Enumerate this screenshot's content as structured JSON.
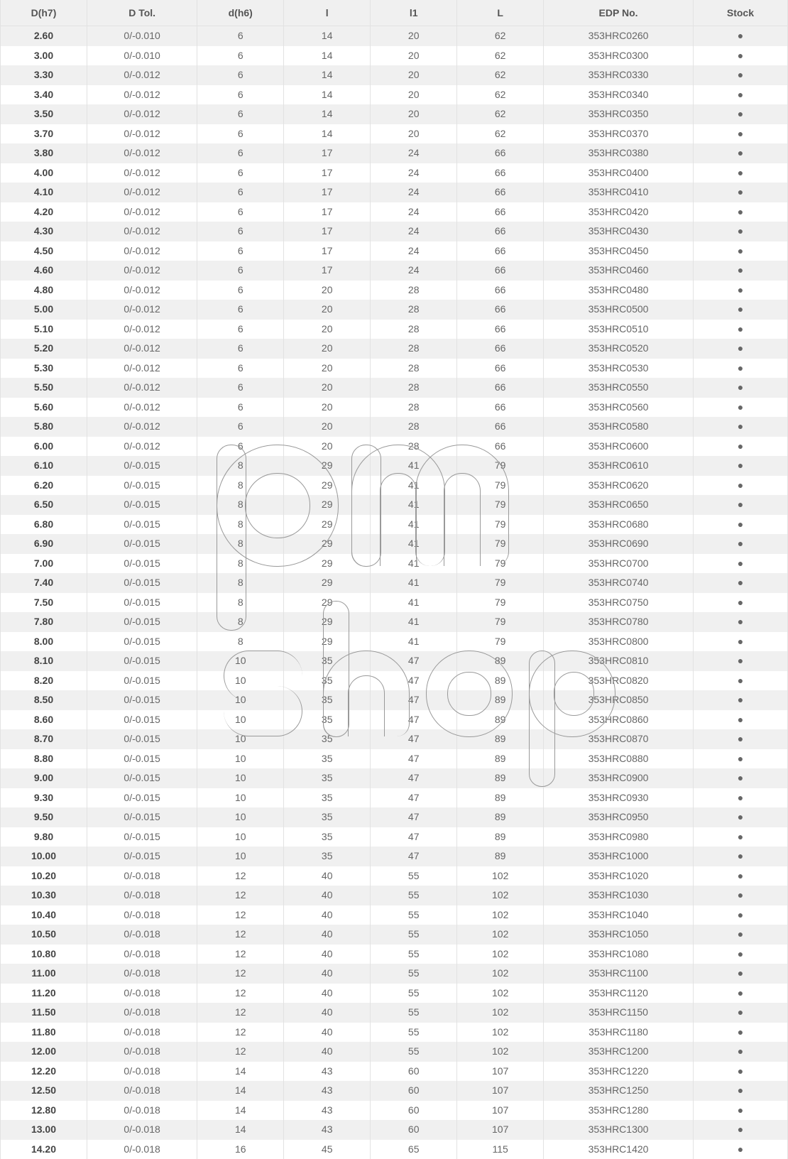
{
  "table": {
    "header_bg": "#f0f0f0",
    "row_alt_bg": "#f0f0f0",
    "row_bg": "#ffffff",
    "border_color": "#e2e2e2",
    "text_color": "#666666",
    "bold_text_color": "#444444",
    "font_size": 14,
    "stock_dot_color": "#000000",
    "col_widths_pct": [
      11,
      14,
      11,
      11,
      11,
      11,
      19,
      12
    ],
    "columns": [
      "D(h7)",
      "D Tol.",
      "d(h6)",
      "l",
      "l1",
      "L",
      "EDP No.",
      "Stock"
    ],
    "rows": [
      [
        "2.60",
        "0/-0.010",
        "6",
        "14",
        "20",
        "62",
        "353HRC0260",
        "●"
      ],
      [
        "3.00",
        "0/-0.010",
        "6",
        "14",
        "20",
        "62",
        "353HRC0300",
        "●"
      ],
      [
        "3.30",
        "0/-0.012",
        "6",
        "14",
        "20",
        "62",
        "353HRC0330",
        "●"
      ],
      [
        "3.40",
        "0/-0.012",
        "6",
        "14",
        "20",
        "62",
        "353HRC0340",
        "●"
      ],
      [
        "3.50",
        "0/-0.012",
        "6",
        "14",
        "20",
        "62",
        "353HRC0350",
        "●"
      ],
      [
        "3.70",
        "0/-0.012",
        "6",
        "14",
        "20",
        "62",
        "353HRC0370",
        "●"
      ],
      [
        "3.80",
        "0/-0.012",
        "6",
        "17",
        "24",
        "66",
        "353HRC0380",
        "●"
      ],
      [
        "4.00",
        "0/-0.012",
        "6",
        "17",
        "24",
        "66",
        "353HRC0400",
        "●"
      ],
      [
        "4.10",
        "0/-0.012",
        "6",
        "17",
        "24",
        "66",
        "353HRC0410",
        "●"
      ],
      [
        "4.20",
        "0/-0.012",
        "6",
        "17",
        "24",
        "66",
        "353HRC0420",
        "●"
      ],
      [
        "4.30",
        "0/-0.012",
        "6",
        "17",
        "24",
        "66",
        "353HRC0430",
        "●"
      ],
      [
        "4.50",
        "0/-0.012",
        "6",
        "17",
        "24",
        "66",
        "353HRC0450",
        "●"
      ],
      [
        "4.60",
        "0/-0.012",
        "6",
        "17",
        "24",
        "66",
        "353HRC0460",
        "●"
      ],
      [
        "4.80",
        "0/-0.012",
        "6",
        "20",
        "28",
        "66",
        "353HRC0480",
        "●"
      ],
      [
        "5.00",
        "0/-0.012",
        "6",
        "20",
        "28",
        "66",
        "353HRC0500",
        "●"
      ],
      [
        "5.10",
        "0/-0.012",
        "6",
        "20",
        "28",
        "66",
        "353HRC0510",
        "●"
      ],
      [
        "5.20",
        "0/-0.012",
        "6",
        "20",
        "28",
        "66",
        "353HRC0520",
        "●"
      ],
      [
        "5.30",
        "0/-0.012",
        "6",
        "20",
        "28",
        "66",
        "353HRC0530",
        "●"
      ],
      [
        "5.50",
        "0/-0.012",
        "6",
        "20",
        "28",
        "66",
        "353HRC0550",
        "●"
      ],
      [
        "5.60",
        "0/-0.012",
        "6",
        "20",
        "28",
        "66",
        "353HRC0560",
        "●"
      ],
      [
        "5.80",
        "0/-0.012",
        "6",
        "20",
        "28",
        "66",
        "353HRC0580",
        "●"
      ],
      [
        "6.00",
        "0/-0.012",
        "6",
        "20",
        "28",
        "66",
        "353HRC0600",
        "●"
      ],
      [
        "6.10",
        "0/-0.015",
        "8",
        "29",
        "41",
        "79",
        "353HRC0610",
        "●"
      ],
      [
        "6.20",
        "0/-0.015",
        "8",
        "29",
        "41",
        "79",
        "353HRC0620",
        "●"
      ],
      [
        "6.50",
        "0/-0.015",
        "8",
        "29",
        "41",
        "79",
        "353HRC0650",
        "●"
      ],
      [
        "6.80",
        "0/-0.015",
        "8",
        "29",
        "41",
        "79",
        "353HRC0680",
        "●"
      ],
      [
        "6.90",
        "0/-0.015",
        "8",
        "29",
        "41",
        "79",
        "353HRC0690",
        "●"
      ],
      [
        "7.00",
        "0/-0.015",
        "8",
        "29",
        "41",
        "79",
        "353HRC0700",
        "●"
      ],
      [
        "7.40",
        "0/-0.015",
        "8",
        "29",
        "41",
        "79",
        "353HRC0740",
        "●"
      ],
      [
        "7.50",
        "0/-0.015",
        "8",
        "29",
        "41",
        "79",
        "353HRC0750",
        "●"
      ],
      [
        "7.80",
        "0/-0.015",
        "8",
        "29",
        "41",
        "79",
        "353HRC0780",
        "●"
      ],
      [
        "8.00",
        "0/-0.015",
        "8",
        "29",
        "41",
        "79",
        "353HRC0800",
        "●"
      ],
      [
        "8.10",
        "0/-0.015",
        "10",
        "35",
        "47",
        "89",
        "353HRC0810",
        "●"
      ],
      [
        "8.20",
        "0/-0.015",
        "10",
        "35",
        "47",
        "89",
        "353HRC0820",
        "●"
      ],
      [
        "8.50",
        "0/-0.015",
        "10",
        "35",
        "47",
        "89",
        "353HRC0850",
        "●"
      ],
      [
        "8.60",
        "0/-0.015",
        "10",
        "35",
        "47",
        "89",
        "353HRC0860",
        "●"
      ],
      [
        "8.70",
        "0/-0.015",
        "10",
        "35",
        "47",
        "89",
        "353HRC0870",
        "●"
      ],
      [
        "8.80",
        "0/-0.015",
        "10",
        "35",
        "47",
        "89",
        "353HRC0880",
        "●"
      ],
      [
        "9.00",
        "0/-0.015",
        "10",
        "35",
        "47",
        "89",
        "353HRC0900",
        "●"
      ],
      [
        "9.30",
        "0/-0.015",
        "10",
        "35",
        "47",
        "89",
        "353HRC0930",
        "●"
      ],
      [
        "9.50",
        "0/-0.015",
        "10",
        "35",
        "47",
        "89",
        "353HRC0950",
        "●"
      ],
      [
        "9.80",
        "0/-0.015",
        "10",
        "35",
        "47",
        "89",
        "353HRC0980",
        "●"
      ],
      [
        "10.00",
        "0/-0.015",
        "10",
        "35",
        "47",
        "89",
        "353HRC1000",
        "●"
      ],
      [
        "10.20",
        "0/-0.018",
        "12",
        "40",
        "55",
        "102",
        "353HRC1020",
        "●"
      ],
      [
        "10.30",
        "0/-0.018",
        "12",
        "40",
        "55",
        "102",
        "353HRC1030",
        "●"
      ],
      [
        "10.40",
        "0/-0.018",
        "12",
        "40",
        "55",
        "102",
        "353HRC1040",
        "●"
      ],
      [
        "10.50",
        "0/-0.018",
        "12",
        "40",
        "55",
        "102",
        "353HRC1050",
        "●"
      ],
      [
        "10.80",
        "0/-0.018",
        "12",
        "40",
        "55",
        "102",
        "353HRC1080",
        "●"
      ],
      [
        "11.00",
        "0/-0.018",
        "12",
        "40",
        "55",
        "102",
        "353HRC1100",
        "●"
      ],
      [
        "11.20",
        "0/-0.018",
        "12",
        "40",
        "55",
        "102",
        "353HRC1120",
        "●"
      ],
      [
        "11.50",
        "0/-0.018",
        "12",
        "40",
        "55",
        "102",
        "353HRC1150",
        "●"
      ],
      [
        "11.80",
        "0/-0.018",
        "12",
        "40",
        "55",
        "102",
        "353HRC1180",
        "●"
      ],
      [
        "12.00",
        "0/-0.018",
        "12",
        "40",
        "55",
        "102",
        "353HRC1200",
        "●"
      ],
      [
        "12.20",
        "0/-0.018",
        "14",
        "43",
        "60",
        "107",
        "353HRC1220",
        "●"
      ],
      [
        "12.50",
        "0/-0.018",
        "14",
        "43",
        "60",
        "107",
        "353HRC1250",
        "●"
      ],
      [
        "12.80",
        "0/-0.018",
        "14",
        "43",
        "60",
        "107",
        "353HRC1280",
        "●"
      ],
      [
        "13.00",
        "0/-0.018",
        "14",
        "43",
        "60",
        "107",
        "353HRC1300",
        "●"
      ],
      [
        "14.20",
        "0/-0.018",
        "16",
        "45",
        "65",
        "115",
        "353HRC1420",
        "●"
      ]
    ]
  },
  "watermark": {
    "text": "pm shop",
    "outline_color": "#999999",
    "outline_width": 1
  }
}
